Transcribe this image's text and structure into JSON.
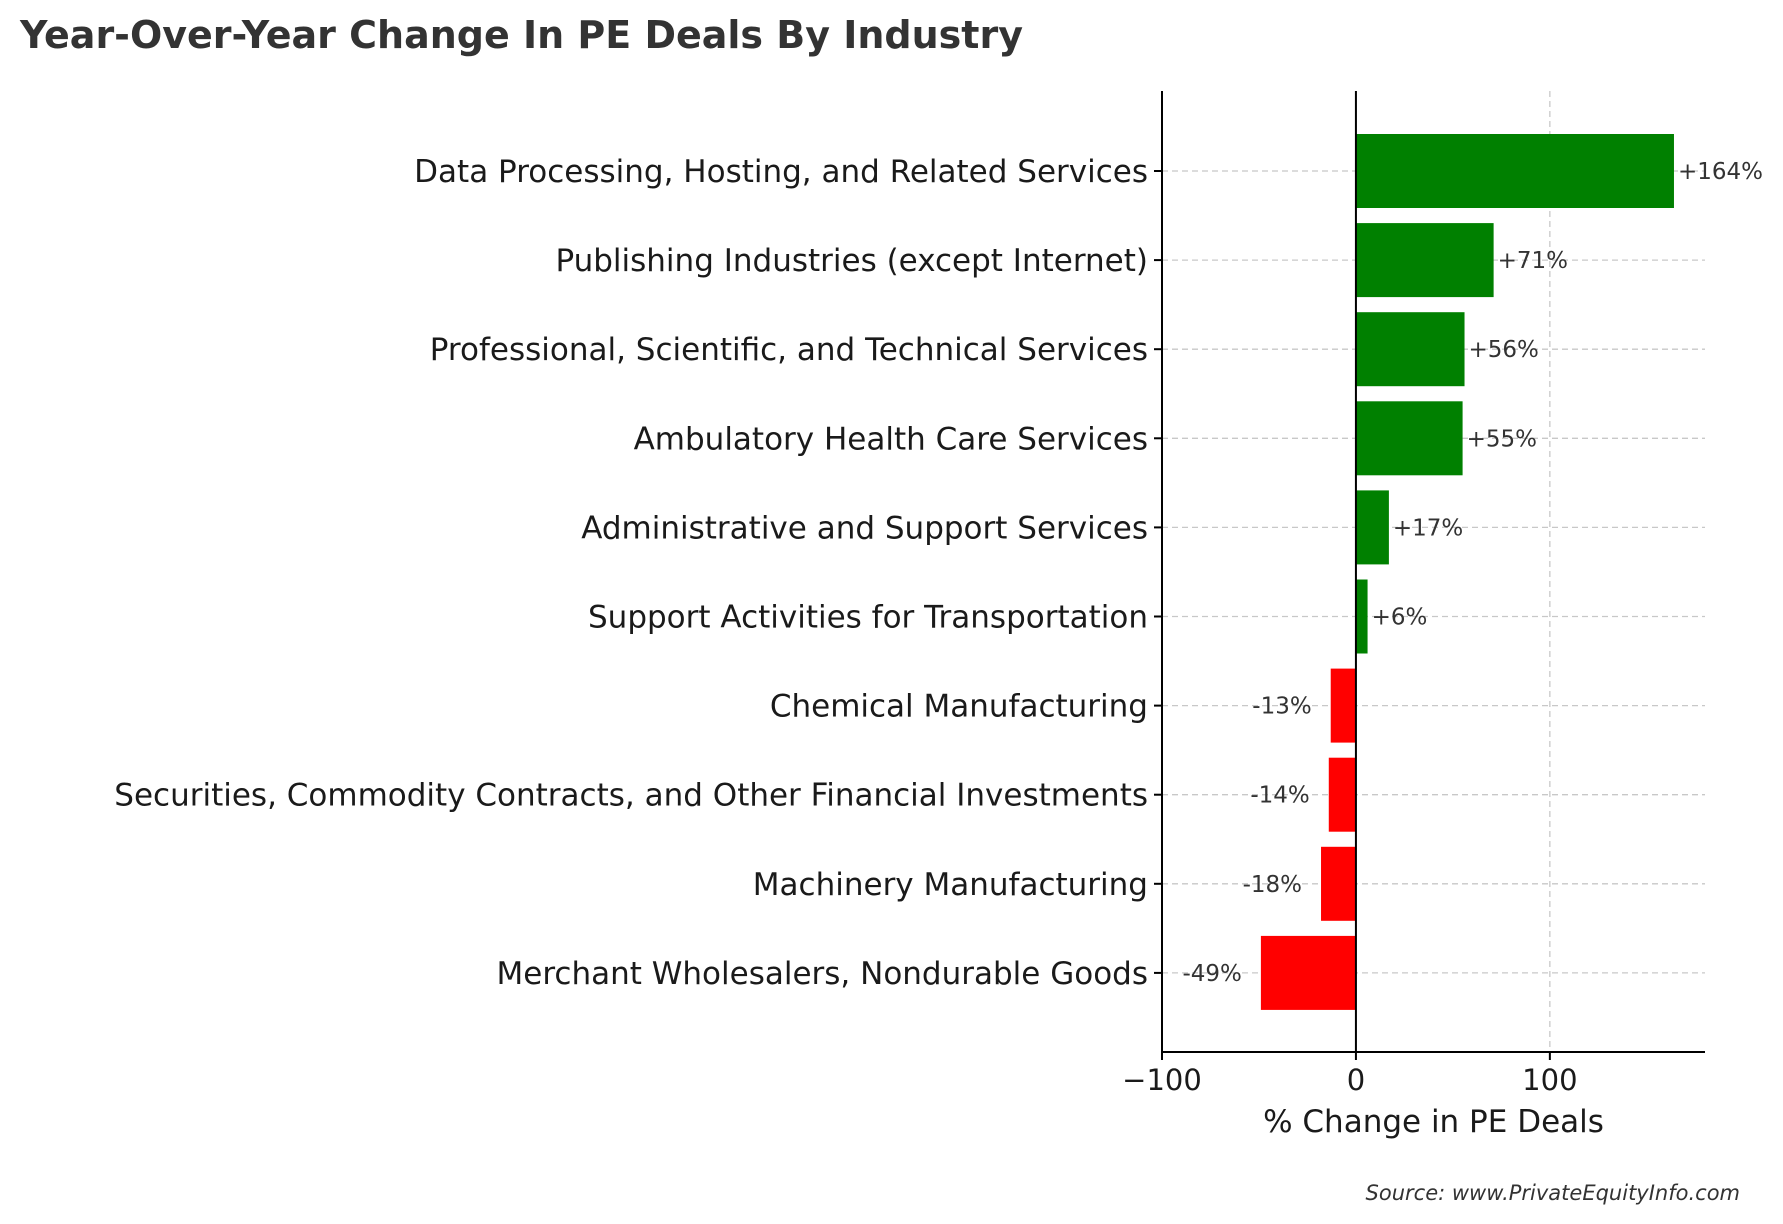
{
  "chart_data": {
    "type": "bar",
    "orientation": "horizontal",
    "title": "Year-Over-Year Change In PE Deals By Industry",
    "xlabel": "% Change in PE Deals",
    "ylabel": "",
    "xlim": [
      -100,
      180
    ],
    "x_ticks": [
      -100,
      0,
      100
    ],
    "x_tick_labels": [
      "−100",
      "0",
      "100"
    ],
    "grid": true,
    "categories": [
      "Data Processing, Hosting, and Related Services",
      "Publishing Industries (except Internet)",
      "Professional, Scientific, and Technical Services",
      "Ambulatory Health Care Services",
      "Administrative and Support Services",
      "Support Activities for Transportation",
      "Chemical Manufacturing",
      "Securities, Commodity Contracts, and Other Financial Investments",
      "Machinery Manufacturing",
      "Merchant Wholesalers, Nondurable Goods"
    ],
    "values": [
      164,
      71,
      56,
      55,
      17,
      6,
      -13,
      -14,
      -18,
      -49
    ],
    "data_labels": [
      "+164%",
      "+71%",
      "+56%",
      "+55%",
      "+17%",
      "+6%",
      "-13%",
      "-14%",
      "-18%",
      "-49%"
    ],
    "colors": {
      "positive": "#008000",
      "negative": "#ff0000"
    }
  },
  "source": "Source: www.PrivateEquityInfo.com"
}
